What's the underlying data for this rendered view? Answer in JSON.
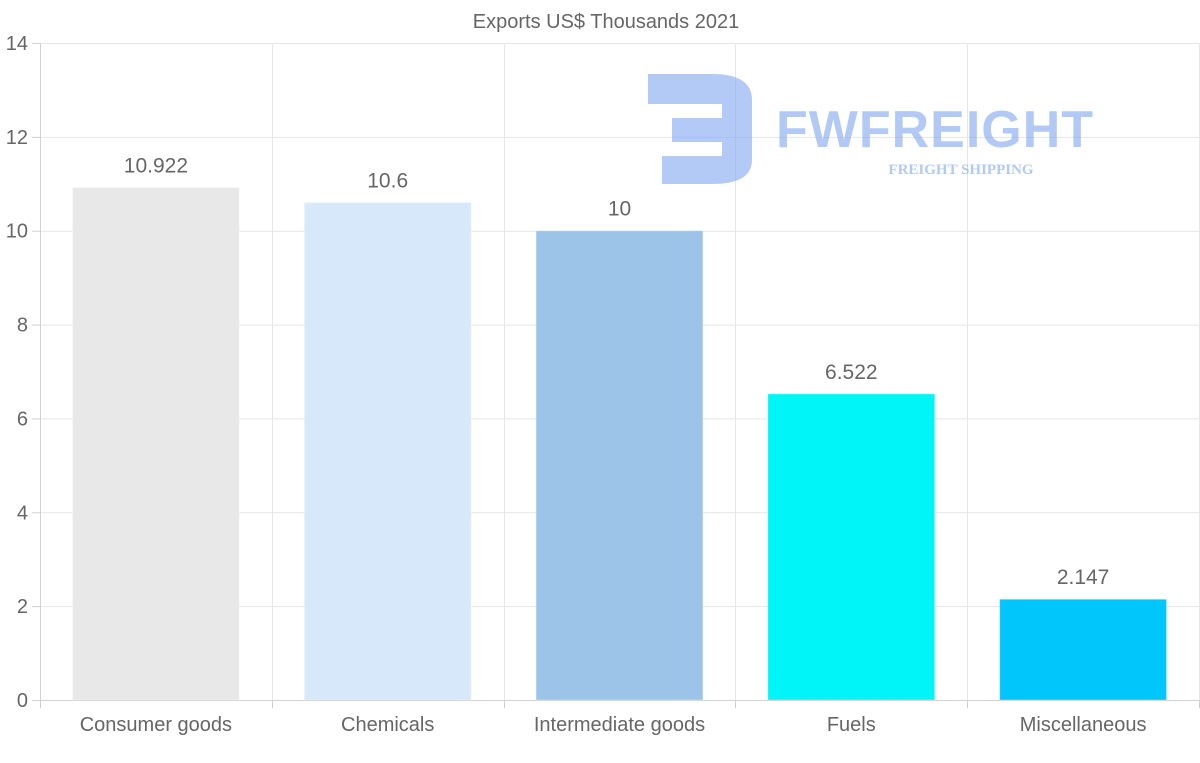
{
  "watermark": {
    "name": "FWFREIGHT",
    "tagline": "FREIGHT SHIPPING",
    "color": "#7ea6ee"
  },
  "chart_data": {
    "type": "bar",
    "title": "Exports US$ Thousands 2021",
    "xlabel": "",
    "ylabel": "",
    "categories": [
      "Consumer goods",
      "Chemicals",
      "Intermediate goods",
      "Fuels",
      "Miscellaneous"
    ],
    "values": [
      10.922,
      10.6,
      10,
      6.522,
      2.147
    ],
    "value_labels": [
      "10.922",
      "10.6",
      "10",
      "6.522",
      "2.147"
    ],
    "colors": [
      "#e8e8e8",
      "#d6e8f9",
      "#9cc4e8",
      "#00f5f8",
      "#00c6fb"
    ],
    "ylim": [
      0,
      14
    ],
    "yticks": [
      0,
      2,
      4,
      6,
      8,
      10,
      12,
      14
    ],
    "grid": true,
    "legend": "none"
  }
}
